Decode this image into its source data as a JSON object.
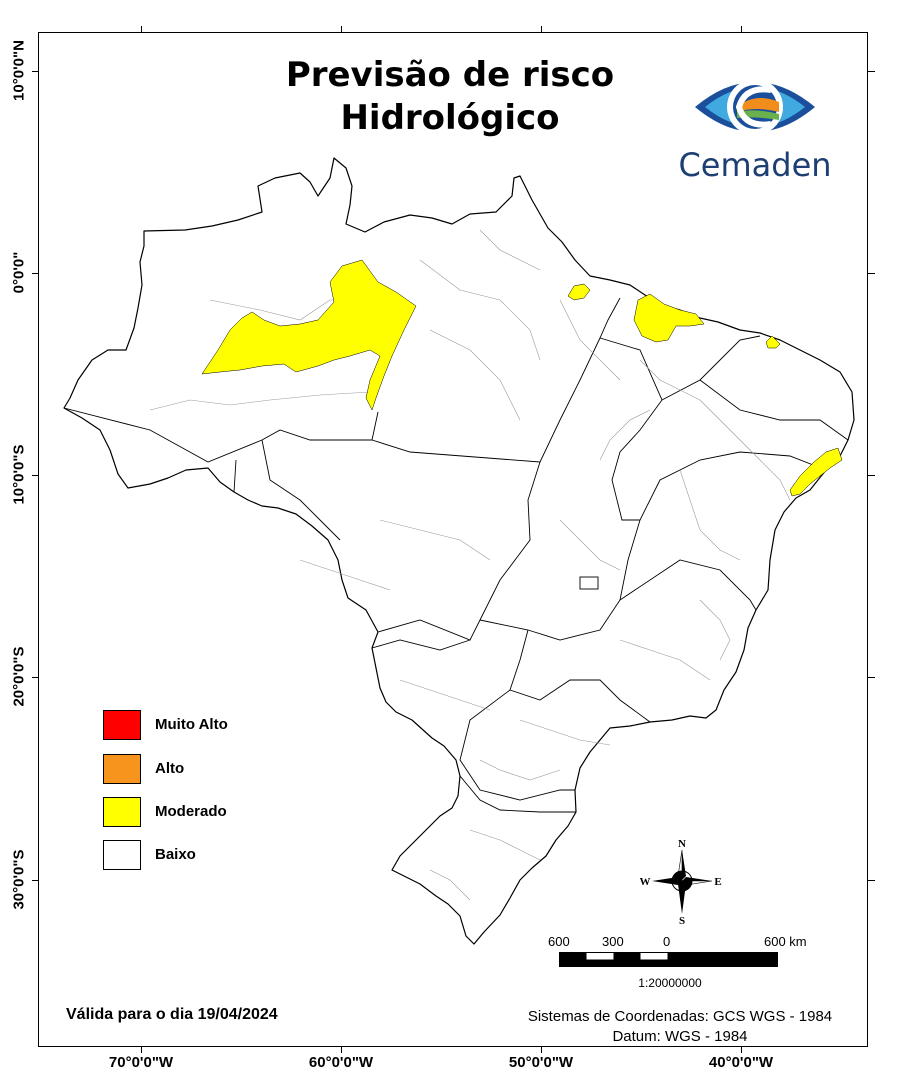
{
  "title": {
    "line1": "Previsão de risco",
    "line2": "Hidrológico"
  },
  "logo": {
    "name": "Cemaden",
    "colors": {
      "blue": "#1b4f9c",
      "light_blue": "#3fa9e0",
      "orange": "#f28c1b",
      "green": "#6ab04c"
    }
  },
  "axes": {
    "longitude_labels": [
      "70°0'0\"W",
      "60°0'0\"W",
      "50°0'0\"W",
      "40°0'0\"W"
    ],
    "latitude_labels": [
      "10°0'0\"N",
      "0°0'0\"",
      "10°0'0\"S",
      "20°0'0\"S",
      "30°0'0\"S"
    ]
  },
  "legend": {
    "items": [
      {
        "label": "Muito Alto",
        "color": "#ff0000"
      },
      {
        "label": "Alto",
        "color": "#f7941d"
      },
      {
        "label": "Moderado",
        "color": "#ffff00"
      },
      {
        "label": "Baixo",
        "color": "#ffffff"
      }
    ]
  },
  "compass": {
    "n": "N",
    "s": "S",
    "e": "E",
    "w": "W"
  },
  "scale_bar": {
    "labels": [
      "600",
      "300",
      "0",
      "600 km"
    ],
    "ratio": "1:20000000"
  },
  "validity": "Válida para o dia 19/04/2024",
  "coordinate_system": "Sistemas de Coordenadas: GCS WGS - 1984",
  "datum": "Datum: WGS - 1984"
}
